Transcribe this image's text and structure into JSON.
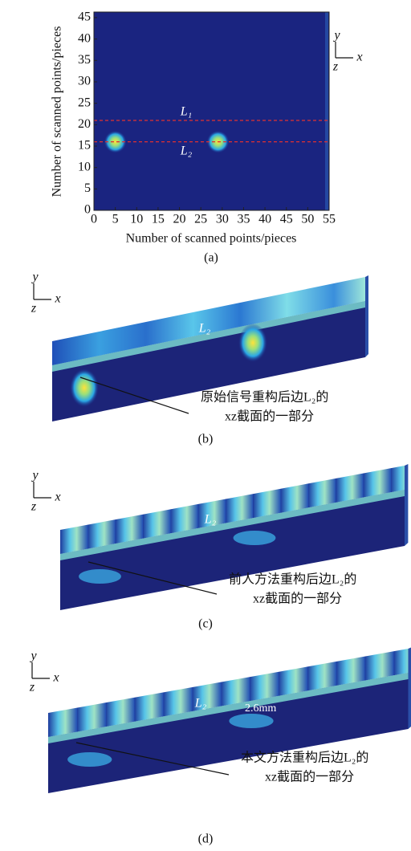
{
  "chart_data": {
    "type": "heatmap",
    "x_label": "Number of scanned points/pieces",
    "y_label": "Number of scanned points/pieces",
    "xlim": [
      0,
      55
    ],
    "ylim": [
      0,
      46.3
    ],
    "xticks": [
      0,
      5,
      10,
      15,
      20,
      25,
      30,
      35,
      40,
      45,
      50,
      55
    ],
    "yticks": [
      0,
      5,
      10,
      15,
      20,
      25,
      30,
      35,
      40,
      45
    ],
    "lines": [
      {
        "name": "L₁",
        "y": 21
      },
      {
        "name": "L₂",
        "y": 16
      }
    ],
    "hotspots": {
      "x": [
        5,
        29
      ],
      "y": [
        16,
        16
      ]
    },
    "axes_labels": [
      "y",
      "x",
      "z"
    ],
    "caption": "(a)"
  },
  "panels": [
    {
      "axes": [
        "y",
        "x",
        "z"
      ],
      "line_label": "L₂",
      "note": [
        "原始信号重构后边L₂的",
        "xz截面的一部分"
      ],
      "caption": "(b)"
    },
    {
      "axes": [
        "y",
        "x",
        "z"
      ],
      "line_label": "L₂",
      "note": [
        "前人方法重构后边L₂的",
        "xz截面的一部分"
      ],
      "caption": "(c)"
    },
    {
      "axes": [
        "y",
        "x",
        "z"
      ],
      "line_label": "L₂",
      "dimension": "2.6mm",
      "note": [
        "本文方法重构后边L₂的",
        "xz截面的一部分"
      ],
      "caption": "(d)"
    }
  ]
}
